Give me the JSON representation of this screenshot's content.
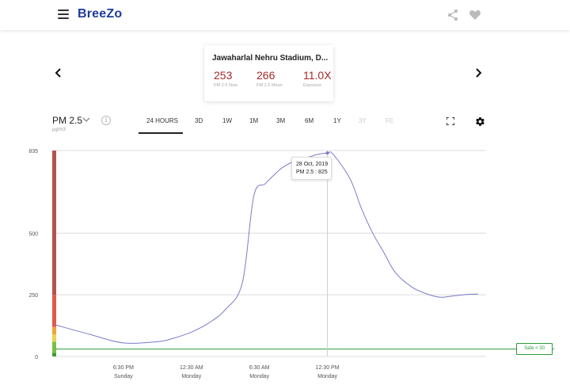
{
  "header": {
    "brand": "BreeZo",
    "icons": {
      "menu": "menu-icon",
      "share": "share-icon",
      "favorite": "heart-icon"
    }
  },
  "station": {
    "name": "Jawaharlal Nehru Stadium, D...",
    "metrics": [
      {
        "value": "253",
        "label": "PM 2.5 Now"
      },
      {
        "value": "266",
        "label": "PM 2.5 Mean"
      },
      {
        "value": "11.0X",
        "label": "Exposure"
      }
    ],
    "value_color": "#a52a2a"
  },
  "controls": {
    "pollutant": "PM 2.5",
    "unit": "μg/m3",
    "info": "i",
    "tabs": [
      {
        "label": "24 HOURS",
        "active": true
      },
      {
        "label": "3D"
      },
      {
        "label": "1W"
      },
      {
        "label": "1M"
      },
      {
        "label": "3M"
      },
      {
        "label": "6M"
      },
      {
        "label": "1Y"
      },
      {
        "label": "3Y",
        "disabled": true
      },
      {
        "label": "FE",
        "disabled": true
      }
    ]
  },
  "tooltip": {
    "date": "28 Oct, 2019",
    "reading": "PM 2.5 : 825"
  },
  "safe_limit": {
    "label": "Safe < 30",
    "value": 30,
    "color": "#2e9c3a"
  },
  "chart_data": {
    "type": "line",
    "y_ticks": [
      "835",
      "500",
      "250",
      "0"
    ],
    "ylim": [
      0,
      835
    ],
    "x_ticks": [
      {
        "time": "6:30 PM",
        "day": "Sunday"
      },
      {
        "time": "12:30 AM",
        "day": "Monday"
      },
      {
        "time": "6:30 AM",
        "day": "Monday"
      },
      {
        "time": "12:30 PM",
        "day": "Monday"
      }
    ],
    "x_hours": [
      0,
      3,
      6,
      9,
      10.5,
      11.8,
      12.3,
      13.5,
      15,
      16.5,
      17.5,
      18.5,
      19.5,
      20,
      21,
      22.5,
      23,
      24,
      24.5,
      26,
      27,
      28,
      29,
      30,
      31.5,
      33,
      34,
      35,
      36.5,
      37.3
    ],
    "y_values": [
      128,
      90,
      55,
      60,
      75,
      95,
      105,
      135,
      190,
      300,
      650,
      700,
      745,
      765,
      790,
      810,
      818,
      825,
      820,
      720,
      600,
      500,
      420,
      340,
      280,
      250,
      240,
      245,
      252,
      253
    ],
    "x_hours_range": [
      0,
      38
    ],
    "selected_hour": 24,
    "aqi_bands": [
      {
        "from": 0,
        "to": 15,
        "color": "#3a9c3a"
      },
      {
        "from": 15,
        "to": 60,
        "color": "#7bc043"
      },
      {
        "from": 60,
        "to": 90,
        "color": "#e8d44d"
      },
      {
        "from": 90,
        "to": 120,
        "color": "#f0a33a"
      },
      {
        "from": 120,
        "to": 250,
        "color": "#e05a4a"
      },
      {
        "from": 250,
        "to": 835,
        "color": "#b5514f"
      }
    ],
    "line_color": "#7b7bc8"
  }
}
